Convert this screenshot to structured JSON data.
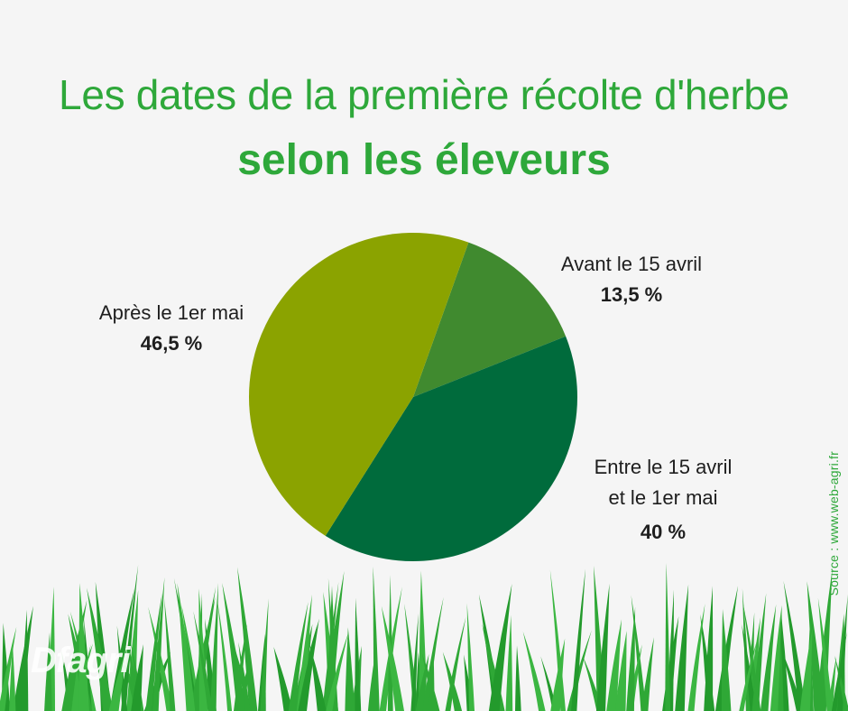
{
  "title_line1": "Les dates de la première récolte d'herbe",
  "title_line2": "selon les éleveurs",
  "source": "Source : www.web-agri.fr",
  "logo_text": "Dfagri",
  "colors": {
    "title": "#2ea83a",
    "slice_avant": "#408a2f",
    "slice_entre": "#006b3c",
    "slice_apres": "#8ba300",
    "grass": "#2fa836"
  },
  "chart_data": {
    "type": "pie",
    "title": "Les dates de la première récolte d'herbe selon les éleveurs",
    "slices": [
      {
        "label": "Avant le 15 avril",
        "value": 13.5,
        "display": "13,5 %",
        "color": "#408a2f"
      },
      {
        "label_lines": [
          "Entre le 15 avril",
          "et le 1er mai"
        ],
        "label": "Entre le 15 avril et le 1er mai",
        "value": 40,
        "display": "40 %",
        "color": "#006b3c"
      },
      {
        "label": "Après le 1er mai",
        "value": 46.5,
        "display": "46,5 %",
        "color": "#8ba300"
      }
    ]
  }
}
